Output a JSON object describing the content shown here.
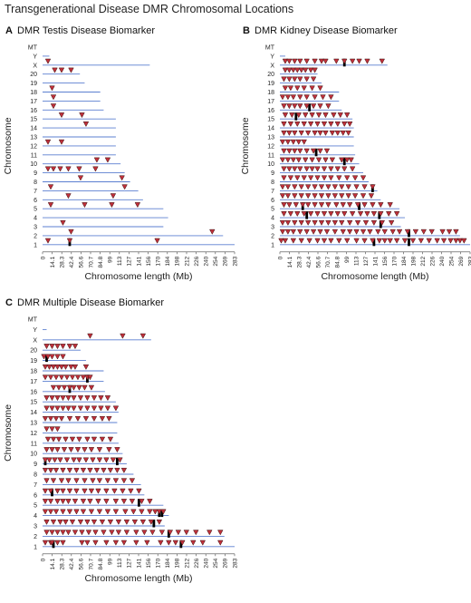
{
  "figure_title": "Transgenerational Disease DMR Chromosomal Locations",
  "colors": {
    "chrom_line": "#5b7fd0",
    "marker_fill": "#c0303a",
    "marker_stroke": "#3a1012",
    "cluster_mark": "#000000"
  },
  "chart_data": [
    {
      "type": "scatter",
      "panel": "A",
      "title": "DMR Testis Disease Biomarker",
      "xlabel": "Chromosome length (Mb)",
      "ylabel": "Chromosome",
      "xlim": [
        0,
        283
      ],
      "x_ticks": [
        "0",
        "14.1",
        "28.3",
        "42.4",
        "56.6",
        "70.7",
        "84.8",
        "99",
        "113",
        "127",
        "141",
        "156",
        "170",
        "184",
        "198",
        "212",
        "226",
        "240",
        "254",
        "269",
        "283"
      ],
      "chromosomes": [
        {
          "name": "1",
          "length": 283,
          "dmrs": [
            8,
            40,
            169
          ],
          "cluster": [
            40
          ]
        },
        {
          "name": "2",
          "length": 266,
          "dmrs": [
            42,
            250
          ],
          "cluster": []
        },
        {
          "name": "3",
          "length": 178,
          "dmrs": [
            30
          ],
          "cluster": []
        },
        {
          "name": "4",
          "length": 185,
          "dmrs": [],
          "cluster": []
        },
        {
          "name": "5",
          "length": 178,
          "dmrs": [
            12,
            62,
            102,
            140
          ],
          "cluster": []
        },
        {
          "name": "6",
          "length": 148,
          "dmrs": [
            38,
            104
          ],
          "cluster": []
        },
        {
          "name": "7",
          "length": 141,
          "dmrs": [
            12,
            121
          ],
          "cluster": []
        },
        {
          "name": "8",
          "length": 129,
          "dmrs": [
            56,
            117
          ],
          "cluster": []
        },
        {
          "name": "9",
          "length": 121,
          "dmrs": [
            8,
            16,
            26,
            38,
            54,
            78
          ],
          "cluster": []
        },
        {
          "name": "10",
          "length": 115,
          "dmrs": [
            80,
            96
          ],
          "cluster": []
        },
        {
          "name": "11",
          "length": 108,
          "dmrs": [],
          "cluster": []
        },
        {
          "name": "12",
          "length": 108,
          "dmrs": [
            8,
            28
          ],
          "cluster": []
        },
        {
          "name": "13",
          "length": 108,
          "dmrs": [],
          "cluster": []
        },
        {
          "name": "14",
          "length": 108,
          "dmrs": [
            64
          ],
          "cluster": []
        },
        {
          "name": "15",
          "length": 108,
          "dmrs": [
            28,
            58
          ],
          "cluster": []
        },
        {
          "name": "16",
          "length": 90,
          "dmrs": [
            16
          ],
          "cluster": []
        },
        {
          "name": "17",
          "length": 85,
          "dmrs": [
            16
          ],
          "cluster": []
        },
        {
          "name": "18",
          "length": 85,
          "dmrs": [
            14
          ],
          "cluster": []
        },
        {
          "name": "19",
          "length": 62,
          "dmrs": [],
          "cluster": []
        },
        {
          "name": "20",
          "length": 55,
          "dmrs": [
            18,
            28,
            42
          ],
          "cluster": []
        },
        {
          "name": "X",
          "length": 158,
          "dmrs": [
            8
          ],
          "cluster": []
        },
        {
          "name": "Y",
          "length": 10,
          "dmrs": [],
          "cluster": []
        },
        {
          "name": "MT",
          "length": 0,
          "dmrs": [],
          "cluster": []
        }
      ]
    },
    {
      "type": "scatter",
      "panel": "B",
      "title": "DMR Kidney Disease Biomarker",
      "xlabel": "Chromosome length (Mb)",
      "ylabel": "Chromosome",
      "xlim": [
        0,
        283
      ],
      "x_ticks": [
        "0",
        "14.1",
        "28.3",
        "42.4",
        "56.6",
        "70.7",
        "84.8",
        "99",
        "113",
        "127",
        "141",
        "156",
        "170",
        "184",
        "198",
        "212",
        "226",
        "240",
        "254",
        "269",
        "283"
      ],
      "chromosomes": [
        {
          "name": "1",
          "length": 283,
          "dmrs": [
            2,
            8,
            20,
            32,
            44,
            56,
            66,
            76,
            88,
            100,
            114,
            126,
            138,
            148,
            156,
            164,
            174,
            186,
            198,
            210,
            222,
            234,
            244,
            254,
            262,
            268,
            274
          ],
          "cluster": [
            140,
            192
          ]
        },
        {
          "name": "2",
          "length": 268,
          "dmrs": [
            4,
            12,
            20,
            30,
            40,
            50,
            60,
            70,
            82,
            94,
            104,
            114,
            124,
            134,
            146,
            156,
            168,
            178,
            190,
            202,
            214,
            226,
            242,
            252,
            262
          ],
          "cluster": [
            192
          ]
        },
        {
          "name": "3",
          "length": 180,
          "dmrs": [
            4,
            12,
            22,
            32,
            42,
            52,
            62,
            72,
            82,
            92,
            104,
            116,
            128,
            140,
            152,
            166
          ],
          "cluster": [
            150
          ]
        },
        {
          "name": "4",
          "length": 186,
          "dmrs": [
            6,
            16,
            26,
            36,
            46,
            56,
            66,
            76,
            86,
            96,
            108,
            120,
            130,
            140,
            150,
            162,
            174
          ],
          "cluster": [
            40,
            148
          ]
        },
        {
          "name": "5",
          "length": 178,
          "dmrs": [
            6,
            14,
            24,
            34,
            42,
            52,
            62,
            72,
            84,
            94,
            104,
            116,
            126,
            138,
            150,
            164
          ],
          "cluster": [
            34,
            118
          ]
        },
        {
          "name": "6",
          "length": 150,
          "dmrs": [
            4,
            12,
            22,
            32,
            42,
            52,
            62,
            72,
            82,
            92,
            102,
            112,
            124,
            136
          ],
          "cluster": []
        },
        {
          "name": "7",
          "length": 145,
          "dmrs": [
            4,
            12,
            22,
            32,
            42,
            52,
            62,
            72,
            82,
            92,
            102,
            114,
            126,
            138
          ],
          "cluster": [
            138
          ]
        },
        {
          "name": "8",
          "length": 132,
          "dmrs": [
            6,
            16,
            26,
            36,
            46,
            56,
            66,
            76,
            88,
            100,
            112,
            124
          ],
          "cluster": []
        },
        {
          "name": "9",
          "length": 124,
          "dmrs": [
            6,
            14,
            22,
            30,
            40,
            48,
            56,
            66,
            76,
            86,
            96,
            108
          ],
          "cluster": []
        },
        {
          "name": "10",
          "length": 118,
          "dmrs": [
            4,
            12,
            20,
            28,
            38,
            48,
            58,
            68,
            78,
            92,
            100,
            106
          ],
          "cluster": [
            96
          ]
        },
        {
          "name": "11",
          "length": 112,
          "dmrs": [
            6,
            14,
            22,
            30,
            40,
            50,
            60,
            70
          ],
          "cluster": [
            54
          ]
        },
        {
          "name": "12",
          "length": 110,
          "dmrs": [
            4,
            12,
            20,
            28,
            36
          ],
          "cluster": []
        },
        {
          "name": "13",
          "length": 110,
          "dmrs": [
            6,
            14,
            22,
            32,
            42,
            52,
            60,
            68,
            78,
            86,
            94,
            102
          ],
          "cluster": []
        },
        {
          "name": "14",
          "length": 110,
          "dmrs": [
            6,
            16,
            26,
            36,
            46,
            56,
            66,
            76,
            86,
            96,
            104
          ],
          "cluster": []
        },
        {
          "name": "15",
          "length": 108,
          "dmrs": [
            8,
            18,
            28,
            38,
            48,
            58,
            68,
            80,
            90,
            100
          ],
          "cluster": [
            24
          ]
        },
        {
          "name": "16",
          "length": 92,
          "dmrs": [
            6,
            14,
            22,
            30,
            40,
            50,
            60,
            72
          ],
          "cluster": [
            44
          ]
        },
        {
          "name": "17",
          "length": 88,
          "dmrs": [
            4,
            12,
            20,
            30,
            40,
            52,
            64,
            76
          ],
          "cluster": []
        },
        {
          "name": "18",
          "length": 88,
          "dmrs": [
            8,
            16,
            26,
            36,
            48,
            60
          ],
          "cluster": []
        },
        {
          "name": "19",
          "length": 62,
          "dmrs": [
            6,
            14,
            22,
            30,
            40,
            50
          ],
          "cluster": []
        },
        {
          "name": "20",
          "length": 56,
          "dmrs": [
            8,
            14,
            20,
            26,
            32,
            38,
            46,
            52
          ],
          "cluster": []
        },
        {
          "name": "X",
          "length": 160,
          "dmrs": [
            8,
            14,
            22,
            30,
            40,
            52,
            62,
            68,
            84,
            96,
            108,
            118,
            130,
            152
          ],
          "cluster": [
            96
          ]
        },
        {
          "name": "Y",
          "length": 8,
          "dmrs": [],
          "cluster": []
        },
        {
          "name": "MT",
          "length": 0,
          "dmrs": [],
          "cluster": []
        }
      ]
    },
    {
      "type": "scatter",
      "panel": "C",
      "title": "DMR Multiple Disease Biomarker",
      "xlabel": "Chromosome length (Mb)",
      "ylabel": "Chromosome",
      "xlim": [
        0,
        283
      ],
      "x_ticks": [
        "0",
        "14.1",
        "28.3",
        "42.4",
        "56.6",
        "70.7",
        "84.8",
        "99",
        "113",
        "127",
        "141",
        "156",
        "170",
        "184",
        "198",
        "212",
        "226",
        "240",
        "254",
        "269",
        "283"
      ],
      "chromosomes": [
        {
          "name": "1",
          "length": 283,
          "dmrs": [
            4,
            12,
            14,
            22,
            30,
            58,
            66,
            78,
            94,
            108,
            120,
            138,
            154,
            174,
            186,
            196,
            206,
            222,
            236,
            262
          ],
          "cluster": [
            16,
            204
          ]
        },
        {
          "name": "2",
          "length": 268,
          "dmrs": [
            6,
            14,
            22,
            30,
            38,
            48,
            58,
            68,
            78,
            90,
            102,
            112,
            124,
            138,
            150,
            162,
            176,
            188,
            200,
            212,
            226,
            246,
            262
          ],
          "cluster": [
            186
          ]
        },
        {
          "name": "3",
          "length": 180,
          "dmrs": [
            6,
            16,
            26,
            34,
            44,
            56,
            66,
            76,
            88,
            100,
            112,
            124,
            136,
            148,
            160,
            172
          ],
          "cluster": [
            164
          ]
        },
        {
          "name": "4",
          "length": 186,
          "dmrs": [
            4,
            12,
            20,
            30,
            40,
            50,
            60,
            72,
            84,
            96,
            108,
            122,
            134,
            146,
            158,
            166,
            172,
            178
          ],
          "cluster": [
            172,
            176
          ]
        },
        {
          "name": "5",
          "length": 178,
          "dmrs": [
            4,
            12,
            22,
            30,
            38,
            48,
            60,
            70,
            82,
            94,
            108,
            120,
            132,
            146,
            158
          ],
          "cluster": [
            142
          ]
        },
        {
          "name": "6",
          "length": 150,
          "dmrs": [
            4,
            12,
            22,
            30,
            40,
            50,
            62,
            72,
            82,
            94,
            106,
            118,
            130,
            142
          ],
          "cluster": [
            14
          ]
        },
        {
          "name": "7",
          "length": 145,
          "dmrs": [
            6,
            16,
            28,
            38,
            50,
            62,
            74,
            84,
            96,
            108,
            120,
            132
          ],
          "cluster": []
        },
        {
          "name": "8",
          "length": 134,
          "dmrs": [
            4,
            12,
            20,
            30,
            40,
            50,
            60,
            70,
            80,
            90,
            100,
            110,
            120
          ],
          "cluster": []
        },
        {
          "name": "9",
          "length": 124,
          "dmrs": [
            4,
            10,
            18,
            26,
            36,
            46,
            54,
            64,
            74,
            84,
            94,
            104,
            114
          ],
          "cluster": [
            4,
            110
          ]
        },
        {
          "name": "10",
          "length": 118,
          "dmrs": [
            6,
            14,
            22,
            32,
            42,
            52,
            62,
            72,
            84,
            98,
            110
          ],
          "cluster": []
        },
        {
          "name": "11",
          "length": 112,
          "dmrs": [
            8,
            16,
            24,
            34,
            44,
            54,
            66,
            76,
            88,
            100
          ],
          "cluster": []
        },
        {
          "name": "12",
          "length": 110,
          "dmrs": [
            6,
            14,
            22
          ],
          "cluster": []
        },
        {
          "name": "13",
          "length": 110,
          "dmrs": [
            4,
            12,
            20,
            28,
            40,
            52,
            64,
            76,
            88,
            98
          ],
          "cluster": []
        },
        {
          "name": "14",
          "length": 112,
          "dmrs": [
            6,
            14,
            22,
            30,
            38,
            46,
            56,
            66,
            76,
            86,
            96,
            108
          ],
          "cluster": []
        },
        {
          "name": "15",
          "length": 108,
          "dmrs": [
            6,
            14,
            22,
            30,
            38,
            46,
            56,
            66,
            76,
            86,
            96
          ],
          "cluster": []
        },
        {
          "name": "16",
          "length": 92,
          "dmrs": [
            16,
            24,
            32,
            40,
            46,
            54,
            62,
            72
          ],
          "cluster": [
            40
          ]
        },
        {
          "name": "17",
          "length": 90,
          "dmrs": [
            4,
            12,
            20,
            28,
            36,
            44,
            52,
            60,
            66,
            70
          ],
          "cluster": [
            66
          ]
        },
        {
          "name": "18",
          "length": 90,
          "dmrs": [
            4,
            10,
            16,
            22,
            28,
            34,
            42,
            48,
            64
          ],
          "cluster": []
        },
        {
          "name": "19",
          "length": 64,
          "dmrs": [
            2,
            8,
            14,
            22,
            30
          ],
          "cluster": [
            6
          ]
        },
        {
          "name": "20",
          "length": 56,
          "dmrs": [
            6,
            14,
            22,
            30,
            40,
            48
          ],
          "cluster": []
        },
        {
          "name": "X",
          "length": 160,
          "dmrs": [
            70,
            118,
            148
          ],
          "cluster": []
        },
        {
          "name": "Y",
          "length": 6,
          "dmrs": [],
          "cluster": []
        },
        {
          "name": "MT",
          "length": 0,
          "dmrs": [],
          "cluster": []
        }
      ]
    }
  ]
}
